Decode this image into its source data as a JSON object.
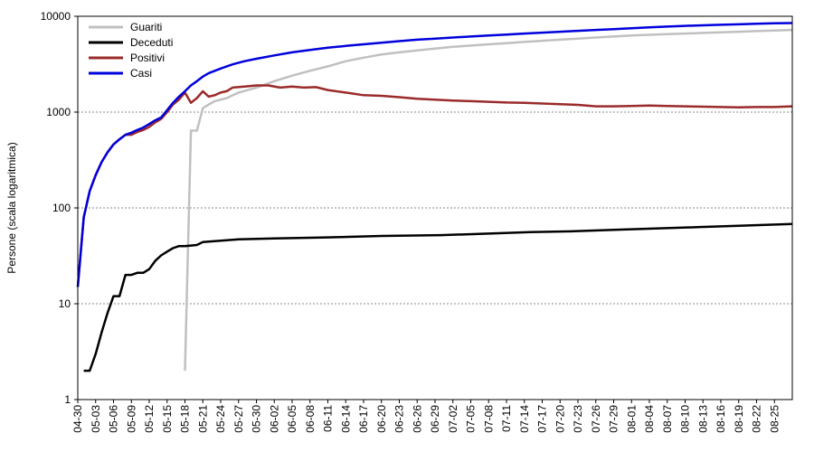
{
  "chart_data": {
    "type": "line",
    "title": "",
    "xlabel": "",
    "ylabel": "Persone (scala logaritmica)",
    "yscale": "log",
    "ylim": [
      1,
      10000
    ],
    "xlim": [
      "04-30",
      "08-28"
    ],
    "year": 2020,
    "grid": {
      "y": true,
      "x": false
    },
    "legend": "top-left",
    "y_ticks": [
      "1",
      "10",
      "100",
      "1000",
      "10000"
    ],
    "x_ticks": [
      "04-30",
      "05-03",
      "05-06",
      "05-09",
      "05-12",
      "05-15",
      "05-18",
      "05-21",
      "05-24",
      "05-27",
      "05-30",
      "06-02",
      "06-05",
      "06-08",
      "06-11",
      "06-14",
      "06-17",
      "06-20",
      "06-23",
      "06-26",
      "06-29",
      "07-02",
      "07-05",
      "07-08",
      "07-11",
      "07-14",
      "07-17",
      "07-20",
      "07-23",
      "07-26",
      "07-29",
      "08-01",
      "08-04",
      "08-07",
      "08-10",
      "08-13",
      "08-16",
      "08-19",
      "08-22",
      "08-25"
    ],
    "series": [
      {
        "name": "Guariti",
        "color": "#c0c0c0",
        "points": [
          [
            "05-18",
            2
          ],
          [
            "05-19",
            640
          ],
          [
            "05-20",
            640
          ],
          [
            "05-21",
            1100
          ],
          [
            "05-22",
            1200
          ],
          [
            "05-23",
            1300
          ],
          [
            "05-25",
            1400
          ],
          [
            "05-27",
            1600
          ],
          [
            "05-30",
            1800
          ],
          [
            "06-02",
            2100
          ],
          [
            "06-05",
            2400
          ],
          [
            "06-08",
            2700
          ],
          [
            "06-11",
            3000
          ],
          [
            "06-14",
            3400
          ],
          [
            "06-17",
            3700
          ],
          [
            "06-20",
            4000
          ],
          [
            "06-23",
            4200
          ],
          [
            "06-26",
            4400
          ],
          [
            "06-29",
            4600
          ],
          [
            "07-02",
            4800
          ],
          [
            "07-05",
            4950
          ],
          [
            "07-08",
            5100
          ],
          [
            "07-11",
            5250
          ],
          [
            "07-14",
            5400
          ],
          [
            "07-17",
            5550
          ],
          [
            "07-20",
            5700
          ],
          [
            "07-23",
            5850
          ],
          [
            "07-26",
            6000
          ],
          [
            "07-29",
            6150
          ],
          [
            "08-01",
            6300
          ],
          [
            "08-04",
            6400
          ],
          [
            "08-07",
            6500
          ],
          [
            "08-10",
            6600
          ],
          [
            "08-13",
            6700
          ],
          [
            "08-16",
            6800
          ],
          [
            "08-19",
            6900
          ],
          [
            "08-22",
            7000
          ],
          [
            "08-25",
            7100
          ],
          [
            "08-28",
            7200
          ]
        ]
      },
      {
        "name": "Deceduti",
        "color": "#000000",
        "points": [
          [
            "05-01",
            2
          ],
          [
            "05-02",
            2
          ],
          [
            "05-03",
            3
          ],
          [
            "05-04",
            5
          ],
          [
            "05-05",
            8
          ],
          [
            "05-06",
            12
          ],
          [
            "05-07",
            12
          ],
          [
            "05-08",
            20
          ],
          [
            "05-09",
            20
          ],
          [
            "05-10",
            21
          ],
          [
            "05-11",
            21
          ],
          [
            "05-12",
            23
          ],
          [
            "05-13",
            28
          ],
          [
            "05-14",
            32
          ],
          [
            "05-15",
            35
          ],
          [
            "05-16",
            38
          ],
          [
            "05-17",
            40
          ],
          [
            "05-18",
            40
          ],
          [
            "05-20",
            41
          ],
          [
            "05-21",
            44
          ],
          [
            "05-23",
            45
          ],
          [
            "05-25",
            46
          ],
          [
            "05-27",
            47
          ],
          [
            "06-02",
            48
          ],
          [
            "06-10",
            49
          ],
          [
            "06-20",
            51
          ],
          [
            "06-30",
            52
          ],
          [
            "07-08",
            54
          ],
          [
            "07-15",
            56
          ],
          [
            "07-22",
            57
          ],
          [
            "07-29",
            59
          ],
          [
            "08-05",
            61
          ],
          [
            "08-12",
            63
          ],
          [
            "08-19",
            65
          ],
          [
            "08-28",
            68
          ]
        ]
      },
      {
        "name": "Positivi",
        "color": "#9b2a2a",
        "points": [
          [
            "04-30",
            15
          ],
          [
            "05-01",
            80
          ],
          [
            "05-02",
            150
          ],
          [
            "05-03",
            220
          ],
          [
            "05-04",
            300
          ],
          [
            "05-05",
            380
          ],
          [
            "05-06",
            460
          ],
          [
            "05-07",
            520
          ],
          [
            "05-08",
            580
          ],
          [
            "05-09",
            580
          ],
          [
            "05-10",
            620
          ],
          [
            "05-11",
            650
          ],
          [
            "05-12",
            700
          ],
          [
            "05-13",
            780
          ],
          [
            "05-14",
            850
          ],
          [
            "05-15",
            1000
          ],
          [
            "05-16",
            1200
          ],
          [
            "05-17",
            1350
          ],
          [
            "05-18",
            1600
          ],
          [
            "05-19",
            1250
          ],
          [
            "05-20",
            1400
          ],
          [
            "05-21",
            1650
          ],
          [
            "05-22",
            1450
          ],
          [
            "05-23",
            1500
          ],
          [
            "05-24",
            1600
          ],
          [
            "05-25",
            1650
          ],
          [
            "05-26",
            1800
          ],
          [
            "05-28",
            1850
          ],
          [
            "05-30",
            1900
          ],
          [
            "06-01",
            1900
          ],
          [
            "06-03",
            1800
          ],
          [
            "06-05",
            1850
          ],
          [
            "06-07",
            1800
          ],
          [
            "06-09",
            1820
          ],
          [
            "06-11",
            1700
          ],
          [
            "06-14",
            1600
          ],
          [
            "06-17",
            1500
          ],
          [
            "06-20",
            1480
          ],
          [
            "06-23",
            1430
          ],
          [
            "06-26",
            1380
          ],
          [
            "06-29",
            1350
          ],
          [
            "07-02",
            1320
          ],
          [
            "07-05",
            1300
          ],
          [
            "07-08",
            1280
          ],
          [
            "07-11",
            1260
          ],
          [
            "07-14",
            1250
          ],
          [
            "07-17",
            1230
          ],
          [
            "07-20",
            1210
          ],
          [
            "07-23",
            1190
          ],
          [
            "07-26",
            1150
          ],
          [
            "07-29",
            1150
          ],
          [
            "08-01",
            1160
          ],
          [
            "08-04",
            1170
          ],
          [
            "08-07",
            1160
          ],
          [
            "08-10",
            1150
          ],
          [
            "08-13",
            1140
          ],
          [
            "08-16",
            1130
          ],
          [
            "08-19",
            1120
          ],
          [
            "08-22",
            1130
          ],
          [
            "08-25",
            1130
          ],
          [
            "08-28",
            1150
          ]
        ]
      },
      {
        "name": "Casi",
        "color": "#0000dd",
        "points": [
          [
            "04-30",
            15
          ],
          [
            "05-01",
            80
          ],
          [
            "05-02",
            150
          ],
          [
            "05-03",
            220
          ],
          [
            "05-04",
            300
          ],
          [
            "05-05",
            380
          ],
          [
            "05-06",
            460
          ],
          [
            "05-07",
            520
          ],
          [
            "05-08",
            580
          ],
          [
            "05-09",
            610
          ],
          [
            "05-10",
            650
          ],
          [
            "05-11",
            690
          ],
          [
            "05-12",
            750
          ],
          [
            "05-13",
            820
          ],
          [
            "05-14",
            880
          ],
          [
            "05-15",
            1050
          ],
          [
            "05-16",
            1250
          ],
          [
            "05-17",
            1450
          ],
          [
            "05-18",
            1650
          ],
          [
            "05-19",
            1900
          ],
          [
            "05-20",
            2100
          ],
          [
            "05-21",
            2350
          ],
          [
            "05-22",
            2550
          ],
          [
            "05-24",
            2850
          ],
          [
            "05-26",
            3150
          ],
          [
            "05-28",
            3400
          ],
          [
            "05-30",
            3600
          ],
          [
            "06-02",
            3900
          ],
          [
            "06-05",
            4200
          ],
          [
            "06-08",
            4450
          ],
          [
            "06-11",
            4700
          ],
          [
            "06-14",
            4900
          ],
          [
            "06-17",
            5100
          ],
          [
            "06-20",
            5300
          ],
          [
            "06-23",
            5500
          ],
          [
            "06-26",
            5700
          ],
          [
            "06-29",
            5850
          ],
          [
            "07-02",
            6000
          ],
          [
            "07-05",
            6150
          ],
          [
            "07-08",
            6300
          ],
          [
            "07-11",
            6450
          ],
          [
            "07-14",
            6600
          ],
          [
            "07-17",
            6750
          ],
          [
            "07-20",
            6900
          ],
          [
            "07-23",
            7050
          ],
          [
            "07-26",
            7200
          ],
          [
            "07-29",
            7350
          ],
          [
            "08-01",
            7500
          ],
          [
            "08-04",
            7650
          ],
          [
            "08-07",
            7800
          ],
          [
            "08-10",
            7950
          ],
          [
            "08-13",
            8050
          ],
          [
            "08-16",
            8150
          ],
          [
            "08-19",
            8250
          ],
          [
            "08-22",
            8350
          ],
          [
            "08-25",
            8450
          ],
          [
            "08-28",
            8500
          ]
        ]
      }
    ]
  }
}
